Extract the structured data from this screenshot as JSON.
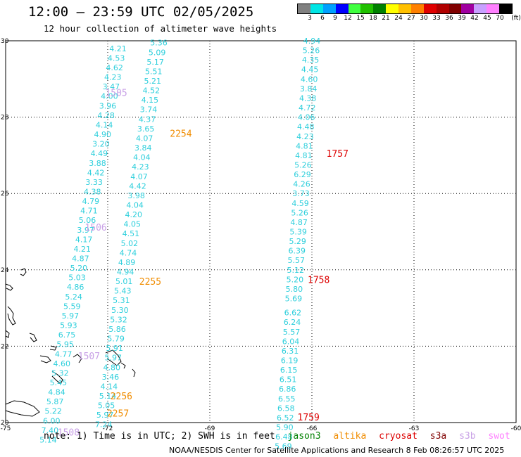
{
  "header": {
    "title": "12:00 – 23:59 UTC 02/05/2025",
    "subtitle": "12 hour collection of altimeter wave heights"
  },
  "colorbar": {
    "unit_label": "(ft)",
    "segments": [
      {
        "color": "#808080",
        "label": "3"
      },
      {
        "color": "#00e5e5",
        "label": "6"
      },
      {
        "color": "#00a0ff",
        "label": "9"
      },
      {
        "color": "#0000ff",
        "label": "12"
      },
      {
        "color": "#40ff40",
        "label": "15"
      },
      {
        "color": "#20c000",
        "label": "18"
      },
      {
        "color": "#008000",
        "label": "21"
      },
      {
        "color": "#ffff00",
        "label": "24"
      },
      {
        "color": "#ffc000",
        "label": "27"
      },
      {
        "color": "#ff8000",
        "label": "30"
      },
      {
        "color": "#e00000",
        "label": "33"
      },
      {
        "color": "#b00000",
        "label": "36"
      },
      {
        "color": "#800000",
        "label": "39"
      },
      {
        "color": "#a000a0",
        "label": "42"
      },
      {
        "color": "#c8a0ff",
        "label": "45"
      },
      {
        "color": "#ff80ff",
        "label": "70"
      },
      {
        "color": "#000000",
        "label": ""
      }
    ]
  },
  "map": {
    "lon_range": [
      -75,
      -60
    ],
    "lat_range": [
      20,
      30
    ],
    "lon_ticks": [
      "-75",
      "-72",
      "-69",
      "-66",
      "-63",
      "-60"
    ],
    "lat_ticks": [
      "30",
      "28",
      "26",
      "24",
      "22",
      "20"
    ],
    "colors": {
      "swh": "#2ecfdc",
      "jason3": "#008000",
      "altika": "#f08c00",
      "cryosat": "#dd0000",
      "s3b": "#c8a0e6",
      "swot": "#ff80ff"
    },
    "tracks": [
      {
        "name": "left-inner-pass",
        "points": [
          {
            "lon": -70.5,
            "lat": 29.95,
            "v": "5.36"
          },
          {
            "lon": -70.55,
            "lat": 29.7,
            "v": "5.09"
          },
          {
            "lon": -70.6,
            "lat": 29.45,
            "v": "5.17"
          },
          {
            "lon": -70.65,
            "lat": 29.2,
            "v": "5.51"
          },
          {
            "lon": -70.68,
            "lat": 28.95,
            "v": "5.21"
          },
          {
            "lon": -70.72,
            "lat": 28.7,
            "v": "4.52"
          },
          {
            "lon": -70.76,
            "lat": 28.45,
            "v": "4.15"
          },
          {
            "lon": -70.8,
            "lat": 28.2,
            "v": "3.74"
          },
          {
            "lon": -70.84,
            "lat": 27.95,
            "v": "4.37"
          },
          {
            "lon": -70.88,
            "lat": 27.7,
            "v": "3.65"
          },
          {
            "lon": -70.92,
            "lat": 27.45,
            "v": "4.07"
          },
          {
            "lon": -70.96,
            "lat": 27.2,
            "v": "3.84"
          },
          {
            "lon": -71.0,
            "lat": 26.95,
            "v": "4.04"
          },
          {
            "lon": -71.04,
            "lat": 26.7,
            "v": "4.23"
          },
          {
            "lon": -71.08,
            "lat": 26.45,
            "v": "4.07"
          },
          {
            "lon": -71.12,
            "lat": 26.2,
            "v": "4.42"
          },
          {
            "lon": -71.16,
            "lat": 25.95,
            "v": "3.98"
          },
          {
            "lon": -71.2,
            "lat": 25.7,
            "v": "4.04"
          },
          {
            "lon": -71.24,
            "lat": 25.45,
            "v": "4.20"
          },
          {
            "lon": -71.28,
            "lat": 25.2,
            "v": "4.05"
          },
          {
            "lon": -71.32,
            "lat": 24.95,
            "v": "4.51"
          },
          {
            "lon": -71.36,
            "lat": 24.7,
            "v": "5.02"
          },
          {
            "lon": -71.4,
            "lat": 24.45,
            "v": "4.74"
          },
          {
            "lon": -71.44,
            "lat": 24.2,
            "v": "4.89"
          },
          {
            "lon": -71.48,
            "lat": 23.95,
            "v": "4.94"
          },
          {
            "lon": -71.52,
            "lat": 23.7,
            "v": "5.01"
          },
          {
            "lon": -71.56,
            "lat": 23.45,
            "v": "5.43"
          },
          {
            "lon": -71.6,
            "lat": 23.2,
            "v": "5.31"
          },
          {
            "lon": -71.64,
            "lat": 22.95,
            "v": "5.30"
          },
          {
            "lon": -71.68,
            "lat": 22.7,
            "v": "5.32"
          },
          {
            "lon": -71.72,
            "lat": 22.45,
            "v": "5.86"
          },
          {
            "lon": -71.76,
            "lat": 22.2,
            "v": "5.79"
          },
          {
            "lon": -71.8,
            "lat": 21.95,
            "v": "5.91"
          },
          {
            "lon": -71.84,
            "lat": 21.7,
            "v": "5.97"
          },
          {
            "lon": -71.88,
            "lat": 21.45,
            "v": "4.80"
          },
          {
            "lon": -71.92,
            "lat": 21.2,
            "v": "3.46"
          },
          {
            "lon": -71.96,
            "lat": 20.95,
            "v": "4.14"
          },
          {
            "lon": -72.0,
            "lat": 20.7,
            "v": "5.14"
          },
          {
            "lon": -72.04,
            "lat": 20.45,
            "v": "5.05"
          },
          {
            "lon": -72.08,
            "lat": 20.2,
            "v": "5.97"
          },
          {
            "lon": -72.12,
            "lat": 19.95,
            "v": "7.24"
          }
        ]
      },
      {
        "name": "left-outer-pass",
        "points": [
          {
            "lon": -71.7,
            "lat": 29.8,
            "v": "4.21"
          },
          {
            "lon": -71.75,
            "lat": 29.55,
            "v": "4.53"
          },
          {
            "lon": -71.8,
            "lat": 29.3,
            "v": "4.62"
          },
          {
            "lon": -71.85,
            "lat": 29.05,
            "v": "4.23"
          },
          {
            "lon": -71.9,
            "lat": 28.8,
            "v": "3.47"
          },
          {
            "lon": -71.95,
            "lat": 28.55,
            "v": "4.00"
          },
          {
            "lon": -72.0,
            "lat": 28.3,
            "v": "3.96"
          },
          {
            "lon": -72.05,
            "lat": 28.05,
            "v": "4.28"
          },
          {
            "lon": -72.1,
            "lat": 27.8,
            "v": "4.14"
          },
          {
            "lon": -72.15,
            "lat": 27.55,
            "v": "4.90"
          },
          {
            "lon": -72.2,
            "lat": 27.3,
            "v": "3.20"
          },
          {
            "lon": -72.25,
            "lat": 27.05,
            "v": "4.49"
          },
          {
            "lon": -72.3,
            "lat": 26.8,
            "v": "3.88"
          },
          {
            "lon": -72.35,
            "lat": 26.55,
            "v": "4.42"
          },
          {
            "lon": -72.4,
            "lat": 26.3,
            "v": "3.33"
          },
          {
            "lon": -72.45,
            "lat": 26.05,
            "v": "4.38"
          },
          {
            "lon": -72.5,
            "lat": 25.8,
            "v": "4.79"
          },
          {
            "lon": -72.55,
            "lat": 25.55,
            "v": "4.71"
          },
          {
            "lon": -72.6,
            "lat": 25.3,
            "v": "5.06"
          },
          {
            "lon": -72.65,
            "lat": 25.05,
            "v": "3.97"
          },
          {
            "lon": -72.7,
            "lat": 24.8,
            "v": "4.17"
          },
          {
            "lon": -72.75,
            "lat": 24.55,
            "v": "4.21"
          },
          {
            "lon": -72.8,
            "lat": 24.3,
            "v": "4.87"
          },
          {
            "lon": -72.85,
            "lat": 24.05,
            "v": "5.20"
          },
          {
            "lon": -72.9,
            "lat": 23.8,
            "v": "5.03"
          },
          {
            "lon": -72.95,
            "lat": 23.55,
            "v": "4.86"
          },
          {
            "lon": -73.0,
            "lat": 23.3,
            "v": "5.24"
          },
          {
            "lon": -73.05,
            "lat": 23.05,
            "v": "5.59"
          },
          {
            "lon": -73.1,
            "lat": 22.8,
            "v": "5.97"
          },
          {
            "lon": -73.15,
            "lat": 22.55,
            "v": "5.93"
          },
          {
            "lon": -73.2,
            "lat": 22.3,
            "v": "6.75"
          },
          {
            "lon": -73.25,
            "lat": 22.05,
            "v": "5.95"
          },
          {
            "lon": -73.3,
            "lat": 21.8,
            "v": "4.77"
          },
          {
            "lon": -73.35,
            "lat": 21.55,
            "v": "4.60"
          },
          {
            "lon": -73.4,
            "lat": 21.3,
            "v": "5.32"
          },
          {
            "lon": -73.45,
            "lat": 21.05,
            "v": "5.45"
          },
          {
            "lon": -73.5,
            "lat": 20.8,
            "v": "4.84"
          },
          {
            "lon": -73.55,
            "lat": 20.55,
            "v": "5.87"
          },
          {
            "lon": -73.6,
            "lat": 20.3,
            "v": "5.22"
          },
          {
            "lon": -73.65,
            "lat": 20.05,
            "v": "6.00"
          },
          {
            "lon": -73.7,
            "lat": 19.8,
            "v": "7.40"
          },
          {
            "lon": -73.75,
            "lat": 19.55,
            "v": "5.14"
          }
        ]
      },
      {
        "name": "right-pass",
        "points": [
          {
            "lon": -66.0,
            "lat": 30.0,
            "v": "4.94"
          },
          {
            "lon": -66.02,
            "lat": 29.75,
            "v": "5.26"
          },
          {
            "lon": -66.04,
            "lat": 29.5,
            "v": "4.35"
          },
          {
            "lon": -66.06,
            "lat": 29.25,
            "v": "4.45"
          },
          {
            "lon": -66.08,
            "lat": 29.0,
            "v": "4.60"
          },
          {
            "lon": -66.1,
            "lat": 28.75,
            "v": "3.84"
          },
          {
            "lon": -66.12,
            "lat": 28.5,
            "v": "4.38"
          },
          {
            "lon": -66.14,
            "lat": 28.25,
            "v": "4.72"
          },
          {
            "lon": -66.16,
            "lat": 28.0,
            "v": "4.06"
          },
          {
            "lon": -66.18,
            "lat": 27.75,
            "v": "4.48"
          },
          {
            "lon": -66.2,
            "lat": 27.5,
            "v": "4.23"
          },
          {
            "lon": -66.22,
            "lat": 27.25,
            "v": "4.81"
          },
          {
            "lon": -66.24,
            "lat": 27.0,
            "v": "4.81"
          },
          {
            "lon": -66.26,
            "lat": 26.75,
            "v": "5.26"
          },
          {
            "lon": -66.28,
            "lat": 26.5,
            "v": "6.29"
          },
          {
            "lon": -66.3,
            "lat": 26.25,
            "v": "4.26"
          },
          {
            "lon": -66.32,
            "lat": 26.0,
            "v": "3.73"
          },
          {
            "lon": -66.34,
            "lat": 25.75,
            "v": "4.59"
          },
          {
            "lon": -66.36,
            "lat": 25.5,
            "v": "5.26"
          },
          {
            "lon": -66.38,
            "lat": 25.25,
            "v": "4.87"
          },
          {
            "lon": -66.4,
            "lat": 25.0,
            "v": "5.39"
          },
          {
            "lon": -66.42,
            "lat": 24.75,
            "v": "5.29"
          },
          {
            "lon": -66.44,
            "lat": 24.5,
            "v": "6.39"
          },
          {
            "lon": -66.46,
            "lat": 24.25,
            "v": "5.57"
          },
          {
            "lon": -66.48,
            "lat": 24.0,
            "v": "5.12"
          },
          {
            "lon": -66.5,
            "lat": 23.75,
            "v": "5.20"
          },
          {
            "lon": -66.52,
            "lat": 23.5,
            "v": "5.80"
          },
          {
            "lon": -66.54,
            "lat": 23.25,
            "v": "5.69"
          },
          {
            "lon": -66.56,
            "lat": 22.88,
            "v": "6.62"
          },
          {
            "lon": -66.58,
            "lat": 22.63,
            "v": "6.24"
          },
          {
            "lon": -66.6,
            "lat": 22.38,
            "v": "5.57"
          },
          {
            "lon": -66.62,
            "lat": 22.13,
            "v": "6.04"
          },
          {
            "lon": -66.64,
            "lat": 21.88,
            "v": "6.31"
          },
          {
            "lon": -66.66,
            "lat": 21.63,
            "v": "6.19"
          },
          {
            "lon": -66.68,
            "lat": 21.38,
            "v": "6.15"
          },
          {
            "lon": -66.7,
            "lat": 21.13,
            "v": "6.51"
          },
          {
            "lon": -66.72,
            "lat": 20.88,
            "v": "6.86"
          },
          {
            "lon": -66.74,
            "lat": 20.63,
            "v": "6.55"
          },
          {
            "lon": -66.76,
            "lat": 20.38,
            "v": "6.58"
          },
          {
            "lon": -66.78,
            "lat": 20.13,
            "v": "6.52"
          },
          {
            "lon": -66.8,
            "lat": 19.88,
            "v": "5.90"
          },
          {
            "lon": -66.82,
            "lat": 19.63,
            "v": "6.48"
          },
          {
            "lon": -66.84,
            "lat": 19.38,
            "v": "5.69"
          }
        ]
      }
    ],
    "time_labels": [
      {
        "text": "1505",
        "lon": -71.75,
        "lat": 28.65,
        "color": "#c8a0e6"
      },
      {
        "text": "2254",
        "lon": -69.85,
        "lat": 27.58,
        "color": "#f08c00"
      },
      {
        "text": "1757",
        "lon": -65.25,
        "lat": 27.05,
        "color": "#dd0000"
      },
      {
        "text": "1506",
        "lon": -72.35,
        "lat": 25.12,
        "color": "#c8a0e6"
      },
      {
        "text": "2255",
        "lon": -70.75,
        "lat": 23.7,
        "color": "#f08c00"
      },
      {
        "text": "1758",
        "lon": -65.8,
        "lat": 23.75,
        "color": "#dd0000"
      },
      {
        "text": "1507",
        "lon": -72.55,
        "lat": 21.75,
        "color": "#c8a0e6"
      },
      {
        "text": "2256",
        "lon": -71.6,
        "lat": 20.7,
        "color": "#f08c00"
      },
      {
        "text": "2257",
        "lon": -71.7,
        "lat": 20.25,
        "color": "#f08c00"
      },
      {
        "text": "1759",
        "lon": -66.1,
        "lat": 20.15,
        "color": "#dd0000"
      },
      {
        "text": "1508",
        "lon": -73.15,
        "lat": 19.75,
        "color": "#c8a0e6"
      }
    ]
  },
  "legend": {
    "prefix": "note:  1) Time is in UTC; 2) SWH is in feet",
    "items": [
      {
        "label": "jason3",
        "color": "#008000"
      },
      {
        "label": "altika",
        "color": "#f08c00"
      },
      {
        "label": "cryosat",
        "color": "#dd0000"
      },
      {
        "label": "s3a",
        "color": "#800000"
      },
      {
        "label": "s3b",
        "color": "#c8a0e6"
      },
      {
        "label": "swot",
        "color": "#ff80ff"
      }
    ]
  },
  "footer": {
    "credit": "NOAA/NESDIS Center for Satellite Applications and Research     8 Feb 08:26:57 UTC 2025"
  }
}
